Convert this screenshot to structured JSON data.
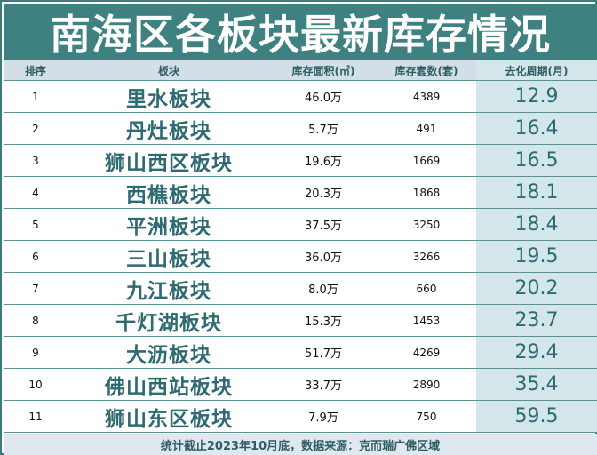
{
  "title": "南海区各板块最新库存情况",
  "headers": {
    "index": "排序",
    "block": "板块",
    "area": "库存面积(㎡)",
    "units": "库存套数(套)",
    "period": "去化周期(月)"
  },
  "rows": [
    {
      "index": "1",
      "block": "里水板块",
      "area": "46.0万",
      "units": "4389",
      "period": "12.9"
    },
    {
      "index": "2",
      "block": "丹灶板块",
      "area": "5.7万",
      "units": "491",
      "period": "16.4"
    },
    {
      "index": "3",
      "block": "狮山西区板块",
      "area": "19.6万",
      "units": "1669",
      "period": "16.5"
    },
    {
      "index": "4",
      "block": "西樵板块",
      "area": "20.3万",
      "units": "1868",
      "period": "18.1"
    },
    {
      "index": "5",
      "block": "平洲板块",
      "area": "37.5万",
      "units": "3250",
      "period": "18.4"
    },
    {
      "index": "6",
      "block": "三山板块",
      "area": "36.0万",
      "units": "3266",
      "period": "19.5"
    },
    {
      "index": "7",
      "block": "九江板块",
      "area": "8.0万",
      "units": "660",
      "period": "20.2"
    },
    {
      "index": "8",
      "block": "千灯湖板块",
      "area": "15.3万",
      "units": "1453",
      "period": "23.7"
    },
    {
      "index": "9",
      "block": "大沥板块",
      "area": "51.7万",
      "units": "4269",
      "period": "29.4"
    },
    {
      "index": "10",
      "block": "佛山西站板块",
      "area": "33.7万",
      "units": "2890",
      "period": "35.4"
    },
    {
      "index": "11",
      "block": "狮山东区板块",
      "area": "7.9万",
      "units": "750",
      "period": "59.5"
    }
  ],
  "footer": "统计截止2023年10月底，数据来源：克而瑞广佛区域",
  "colors": {
    "title_bg": "#3f8080",
    "header_bg": "#d2dfe6",
    "period_col_bg": "#d3e6ea",
    "block_text": "#2e6a71"
  }
}
